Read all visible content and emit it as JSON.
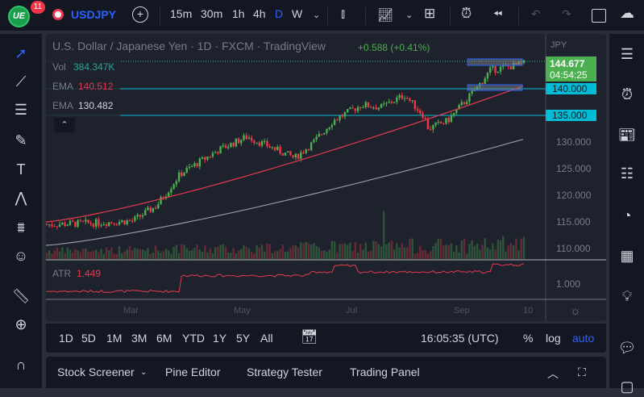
{
  "topbar": {
    "logo_badge": "11",
    "symbol": "USDJPY",
    "intervals": [
      "15m",
      "30m",
      "1h",
      "4h",
      "D",
      "W"
    ],
    "active_interval": "D"
  },
  "legend": {
    "title": "U.S. Dollar / Japanese Yen · 1D · FXCM · TradingView",
    "change": "+0.588 (+0.41%)",
    "vol_label": "Vol",
    "vol_value": "384.347K",
    "ema1_label": "EMA",
    "ema1_value": "140.512",
    "ema2_label": "EMA",
    "ema2_value": "130.482"
  },
  "price_axis": {
    "currency": "JPY",
    "last_price": "144.677",
    "countdown": "04:54:25",
    "level_140": "140.000",
    "level_135": "135.000",
    "ticks": [
      "130.000",
      "125.000",
      "120.000",
      "115.000",
      "110.000"
    ]
  },
  "atr": {
    "label": "ATR",
    "value": "1.449",
    "tick": "1.000"
  },
  "time_axis": {
    "labels": [
      "Mar",
      "May",
      "Jul",
      "Sep",
      "10"
    ]
  },
  "bottombar": {
    "ranges": [
      "1D",
      "5D",
      "1M",
      "3M",
      "6M",
      "YTD",
      "1Y",
      "5Y",
      "All"
    ],
    "clock": "16:05:35 (UTC)",
    "percent": "%",
    "log": "log",
    "auto": "auto"
  },
  "panel": {
    "tabs": [
      "Stock Screener",
      "Pine Editor",
      "Strategy Tester",
      "Trading Panel"
    ]
  },
  "colors": {
    "up": "#4caf50",
    "down": "#f23645",
    "ema_fast": "#e53950",
    "ema_slow": "#9598a1",
    "level": "#00bcd4",
    "accent": "#2962ff"
  },
  "price_path": [
    [
      0,
      114.5
    ],
    [
      0.1,
      114.8
    ],
    [
      0.18,
      115.2
    ],
    [
      0.23,
      118
    ],
    [
      0.28,
      124
    ],
    [
      0.36,
      128.5
    ],
    [
      0.42,
      131
    ],
    [
      0.47,
      129
    ],
    [
      0.52,
      127
    ],
    [
      0.56,
      130
    ],
    [
      0.6,
      134
    ],
    [
      0.66,
      137
    ],
    [
      0.7,
      136.5
    ],
    [
      0.75,
      138.8
    ],
    [
      0.79,
      135
    ],
    [
      0.8,
      132.5
    ],
    [
      0.84,
      134
    ],
    [
      0.88,
      138
    ],
    [
      0.9,
      140
    ],
    [
      0.93,
      143.5
    ],
    [
      1,
      144.7
    ]
  ],
  "ema_fast_range": [
    115,
    140.5
  ],
  "ema_slow_range": [
    110.6,
    130.5
  ]
}
